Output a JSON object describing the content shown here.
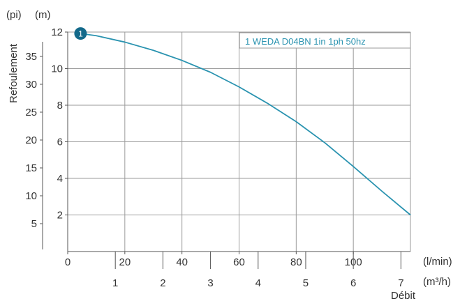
{
  "chart_data": {
    "type": "line",
    "title": "",
    "xlabel": "Débit",
    "ylabel": "Refoulement",
    "x_unit_primary": "(l/min)",
    "x_unit_secondary": "(m³/h)",
    "y_unit_primary": "(m)",
    "y_unit_secondary": "(pi)",
    "xlim": [
      0,
      120
    ],
    "ylim": [
      0,
      12
    ],
    "x_ticks_lmin": [
      0,
      20,
      40,
      60,
      80,
      100
    ],
    "x_ticks_m3h": [
      1,
      2,
      3,
      4,
      5,
      6,
      7
    ],
    "y_ticks_m": [
      2,
      4,
      6,
      8,
      10,
      12
    ],
    "y_ticks_ft": [
      5,
      10,
      15,
      20,
      25,
      30,
      35
    ],
    "grid": true,
    "legend_position": "top-right",
    "series": [
      {
        "name": "1 WEDA D04BN 1in 1ph 50hz",
        "marker_label": "1",
        "color": "#2a93b0",
        "marker_color": "#13698a",
        "x": [
          4.5,
          10,
          20,
          30,
          40,
          50,
          60,
          70,
          80,
          90,
          100,
          110,
          120
        ],
        "y": [
          11.92,
          11.8,
          11.45,
          11.0,
          10.45,
          9.8,
          9.0,
          8.1,
          7.1,
          5.95,
          4.65,
          3.3,
          2.0
        ]
      }
    ]
  }
}
